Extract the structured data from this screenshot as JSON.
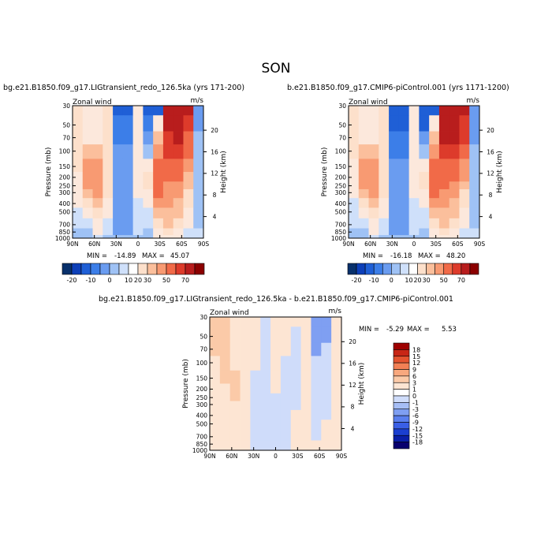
{
  "figure_title": "SON",
  "chart_data": [
    {
      "type": "heatmap",
      "panel": "left",
      "title": "bg.e21.B1850.f09_g17.LIGtransient_redo_126.5ka (yrs 171-200)",
      "variable": "Zonal wind",
      "units": "m/s",
      "x_ticks": [
        "90N",
        "60N",
        "30N",
        "0",
        "30S",
        "60S",
        "90S"
      ],
      "y_ticks": [
        "30",
        "50",
        "70",
        "100",
        "150",
        "200",
        "250",
        "300",
        "400",
        "500",
        "700",
        "850",
        "1000"
      ],
      "ylabel": "Pressure (mb)",
      "y2label": "Height (km)",
      "y2_ticks": [
        "4",
        "8",
        "12",
        "16",
        "20"
      ],
      "stats": {
        "min_label": "MIN =",
        "min": "-14.89",
        "max_label": "MAX =",
        "max": "45.07"
      },
      "colorbar_ticks": [
        "-20",
        "-10",
        "0",
        "10",
        "20",
        "30",
        "50",
        "70"
      ],
      "colorbar_colors": [
        "#08306b",
        "#0d3fb8",
        "#1f5fd6",
        "#3c7ee8",
        "#6a9cf0",
        "#9fc2f5",
        "#cfe0fa",
        "#ffffff",
        "#fde0cb",
        "#fbbf9c",
        "#f89a72",
        "#f16a48",
        "#dd3b2b",
        "#b81d1d",
        "#8b0000"
      ],
      "field": [
        [
          4,
          1,
          1,
          3,
          -12,
          -12,
          1,
          -12,
          -12,
          45,
          45,
          40,
          -5
        ],
        [
          4,
          1,
          1,
          3,
          -10,
          -10,
          1,
          -10,
          2,
          42,
          44,
          35,
          -4
        ],
        [
          4,
          2,
          2,
          3,
          -8,
          -8,
          1,
          -4,
          6,
          38,
          40,
          28,
          -3
        ],
        [
          4,
          8,
          8,
          3,
          -6,
          -6,
          1,
          -2,
          15,
          32,
          32,
          20,
          -2
        ],
        [
          3,
          12,
          14,
          5,
          -5,
          -5,
          1,
          2,
          22,
          26,
          24,
          12,
          -2
        ],
        [
          2,
          12,
          18,
          5,
          -4,
          -4,
          1,
          4,
          28,
          22,
          20,
          8,
          -2
        ],
        [
          2,
          10,
          16,
          5,
          -4,
          -4,
          1,
          4,
          26,
          18,
          16,
          6,
          -2
        ],
        [
          1,
          6,
          12,
          3,
          -5,
          -5,
          1,
          2,
          20,
          14,
          12,
          4,
          -2
        ],
        [
          1,
          3,
          8,
          2,
          -6,
          -6,
          0,
          1,
          12,
          10,
          8,
          3,
          -3
        ],
        [
          0,
          1,
          4,
          1,
          -6,
          -6,
          0,
          0,
          8,
          8,
          6,
          2,
          -3
        ],
        [
          -1,
          -1,
          2,
          0,
          -5,
          -5,
          0,
          -1,
          4,
          6,
          4,
          1,
          -2
        ],
        [
          -2,
          -2,
          1,
          -1,
          -4,
          -4,
          -1,
          -2,
          2,
          4,
          2,
          0,
          -1
        ],
        [
          -2,
          -2,
          0,
          -2,
          -3,
          -3,
          -2,
          -2,
          1,
          2,
          1,
          0,
          -1
        ]
      ]
    },
    {
      "type": "heatmap",
      "panel": "right",
      "title": "b.e21.B1850.f09_g17.CMIP6-piControl.001 (yrs 1171-1200)",
      "variable": "Zonal wind",
      "units": "m/s",
      "x_ticks": [
        "90N",
        "60N",
        "30N",
        "0",
        "30S",
        "60S",
        "90S"
      ],
      "y_ticks": [
        "30",
        "50",
        "70",
        "100",
        "150",
        "200",
        "250",
        "300",
        "400",
        "500",
        "700",
        "850",
        "1000"
      ],
      "ylabel": "Pressure (mb)",
      "y2label": "Height (km)",
      "y2_ticks": [
        "4",
        "8",
        "12",
        "16",
        "20"
      ],
      "stats": {
        "min_label": "MIN =",
        "min": "-16.18",
        "max_label": "MAX =",
        "max": "48.20"
      },
      "colorbar_ticks": [
        "-20",
        "-10",
        "0",
        "10",
        "20",
        "30",
        "50",
        "70"
      ],
      "colorbar_colors": [
        "#08306b",
        "#0d3fb8",
        "#1f5fd6",
        "#3c7ee8",
        "#6a9cf0",
        "#9fc2f5",
        "#cfe0fa",
        "#ffffff",
        "#fde0cb",
        "#fbbf9c",
        "#f89a72",
        "#f16a48",
        "#dd3b2b",
        "#b81d1d",
        "#8b0000"
      ],
      "field": [
        [
          3,
          1,
          1,
          3,
          -14,
          -14,
          1,
          -14,
          -14,
          48,
          48,
          42,
          -6
        ],
        [
          3,
          1,
          1,
          3,
          -12,
          -12,
          1,
          -12,
          2,
          45,
          46,
          38,
          -5
        ],
        [
          3,
          2,
          2,
          3,
          -10,
          -10,
          1,
          -5,
          6,
          40,
          42,
          30,
          -4
        ],
        [
          3,
          8,
          8,
          3,
          -7,
          -7,
          1,
          -2,
          15,
          34,
          34,
          22,
          -3
        ],
        [
          2,
          12,
          14,
          5,
          -6,
          -6,
          1,
          2,
          22,
          28,
          26,
          14,
          -3
        ],
        [
          2,
          12,
          18,
          5,
          -5,
          -5,
          1,
          4,
          28,
          24,
          22,
          10,
          -2
        ],
        [
          1,
          10,
          16,
          5,
          -5,
          -5,
          1,
          4,
          26,
          20,
          18,
          7,
          -2
        ],
        [
          1,
          6,
          12,
          3,
          -5,
          -5,
          1,
          2,
          20,
          15,
          13,
          5,
          -2
        ],
        [
          0,
          3,
          8,
          2,
          -6,
          -6,
          0,
          1,
          12,
          11,
          9,
          3,
          -3
        ],
        [
          0,
          1,
          4,
          1,
          -6,
          -6,
          0,
          0,
          8,
          8,
          6,
          2,
          -3
        ],
        [
          -1,
          -1,
          2,
          0,
          -5,
          -5,
          0,
          -1,
          4,
          6,
          4,
          1,
          -2
        ],
        [
          -2,
          -2,
          1,
          -1,
          -4,
          -4,
          -1,
          -2,
          2,
          4,
          2,
          0,
          -1
        ],
        [
          -2,
          -2,
          0,
          -2,
          -3,
          -3,
          -2,
          -2,
          1,
          2,
          1,
          0,
          -1
        ]
      ]
    },
    {
      "type": "heatmap",
      "panel": "difference",
      "title": "bg.e21.B1850.f09_g17.LIGtransient_redo_126.5ka - b.e21.B1850.f09_g17.CMIP6-piControl.001",
      "variable": "Zonal wind",
      "units": "m/s",
      "x_ticks": [
        "90N",
        "60N",
        "30N",
        "0",
        "30S",
        "60S",
        "90S"
      ],
      "y_ticks": [
        "30",
        "50",
        "70",
        "100",
        "150",
        "200",
        "250",
        "300",
        "400",
        "500",
        "700",
        "850",
        "1000"
      ],
      "ylabel": "Pressure (mb)",
      "y2label": "Height (km)",
      "y2_ticks": [
        "4",
        "8",
        "12",
        "16",
        "20"
      ],
      "stats": {
        "min_label": "MIN =",
        "min": "-5.29",
        "max_label": "MAX =",
        "max": "5.53"
      },
      "colorbar_ticks": [
        "18",
        "15",
        "12",
        "9",
        "6",
        "3",
        "1",
        "0",
        "-1",
        "-3",
        "-6",
        "-9",
        "-12",
        "-15",
        "-18"
      ],
      "colorbar_colors": [
        "#08006e",
        "#0a1fa8",
        "#1b3fd0",
        "#3a5fe6",
        "#5a7fee",
        "#7f9ff2",
        "#a6bef6",
        "#cfdcfa",
        "#ffffff",
        "#fde5d3",
        "#fbcaa8",
        "#f8a87e",
        "#f28055",
        "#e4532f",
        "#c82616",
        "#9e0000"
      ],
      "field": [
        [
          3,
          3,
          1,
          1,
          1,
          -1,
          1,
          1,
          1,
          1,
          -3,
          -3,
          1
        ],
        [
          3,
          3,
          1,
          1,
          1,
          -1,
          1,
          1,
          -1,
          1,
          -3,
          -3,
          1
        ],
        [
          3,
          3,
          1,
          1,
          1,
          -1,
          1,
          1,
          -1,
          1,
          -3,
          -1,
          1
        ],
        [
          1,
          3,
          1,
          1,
          1,
          -1,
          1,
          -1,
          -1,
          1,
          -1,
          -1,
          1
        ],
        [
          1,
          3,
          3,
          1,
          -1,
          -1,
          1,
          -1,
          -1,
          1,
          -1,
          -1,
          1
        ],
        [
          1,
          1,
          3,
          1,
          -1,
          -1,
          1,
          -1,
          -1,
          1,
          -1,
          -1,
          1
        ],
        [
          1,
          1,
          3,
          1,
          -1,
          -1,
          -1,
          -1,
          -1,
          1,
          -1,
          -1,
          1
        ],
        [
          1,
          1,
          1,
          1,
          -1,
          -1,
          -1,
          -1,
          -1,
          1,
          -1,
          -1,
          1
        ],
        [
          1,
          1,
          1,
          1,
          -1,
          -1,
          -1,
          -1,
          1,
          1,
          -1,
          -1,
          1
        ],
        [
          1,
          1,
          1,
          1,
          -1,
          -1,
          -1,
          -1,
          1,
          1,
          -1,
          1,
          1
        ],
        [
          1,
          1,
          1,
          1,
          -1,
          -1,
          -1,
          -1,
          1,
          1,
          -1,
          1,
          1
        ],
        [
          1,
          1,
          1,
          1,
          -1,
          -1,
          -1,
          -1,
          1,
          1,
          1,
          1,
          1
        ],
        [
          1,
          1,
          1,
          1,
          -1,
          -1,
          -1,
          -1,
          1,
          1,
          1,
          1,
          1
        ]
      ]
    }
  ]
}
